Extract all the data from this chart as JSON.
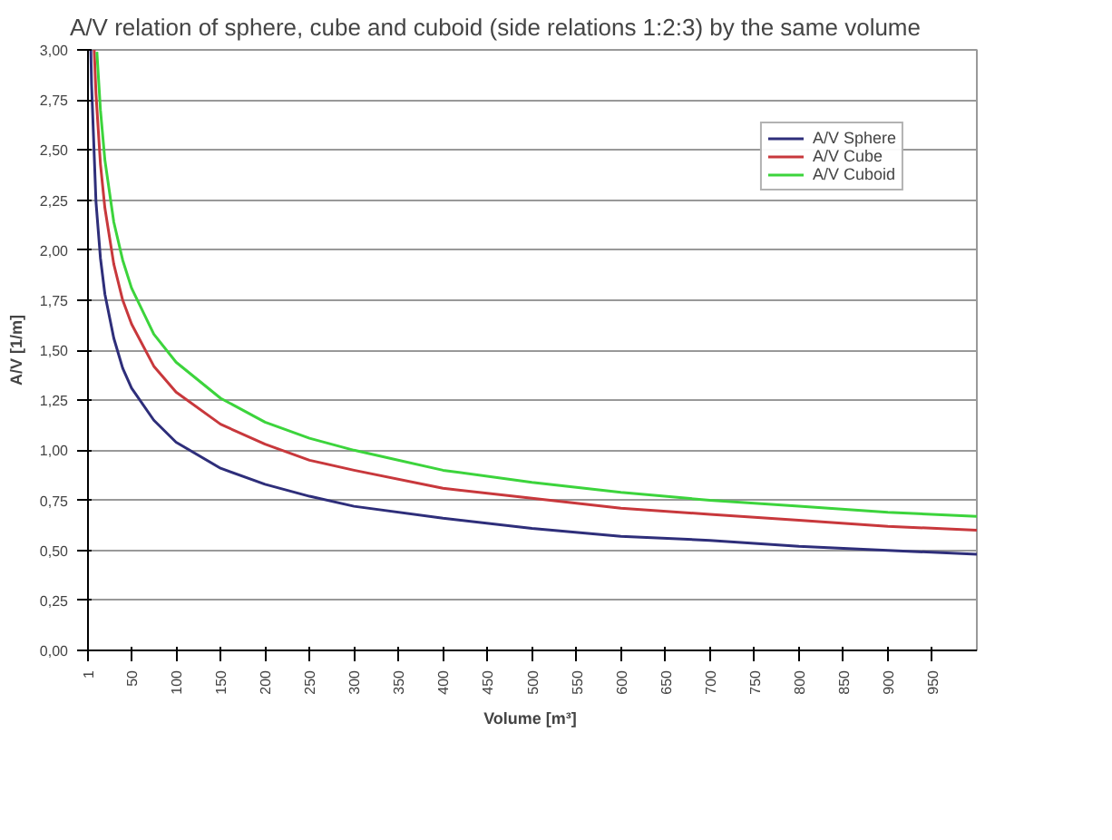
{
  "chart_data": {
    "type": "line",
    "title": "A/V relation of sphere, cube and cuboid (side relations 1:2:3) by the same volume",
    "xlabel": "Volume  [m³]",
    "ylabel": "A/V [1/m]",
    "xlim": [
      1,
      1000
    ],
    "xticks": [
      1,
      50,
      100,
      150,
      200,
      250,
      300,
      350,
      400,
      450,
      500,
      550,
      600,
      650,
      700,
      750,
      800,
      850,
      900,
      950
    ],
    "ylim": [
      0,
      3
    ],
    "yticks": [
      {
        "value": 0,
        "label": "0,00"
      },
      {
        "value": 0.25,
        "label": "0,25"
      },
      {
        "value": 0.5,
        "label": "0,50"
      },
      {
        "value": 0.75,
        "label": "0,75"
      },
      {
        "value": 1,
        "label": "1,00"
      },
      {
        "value": 1.25,
        "label": "1,25"
      },
      {
        "value": 1.5,
        "label": "1,50"
      },
      {
        "value": 1.75,
        "label": "1,75"
      },
      {
        "value": 2,
        "label": "2,00"
      },
      {
        "value": 2.25,
        "label": "2,25"
      },
      {
        "value": 2.5,
        "label": "2,50"
      },
      {
        "value": 2.75,
        "label": "2,75"
      },
      {
        "value": 3,
        "label": "3,00"
      }
    ],
    "grid": "y",
    "legend": "top right",
    "marker": "none",
    "line_style": "solid",
    "series": [
      {
        "name": "A/V Sphere",
        "color": "#2e2e7a",
        "x": [
          4.2,
          5,
          10,
          15,
          20,
          30,
          40,
          50,
          75,
          100,
          150,
          200,
          250,
          300,
          400,
          500,
          600,
          700,
          800,
          900,
          1000
        ],
        "values": [
          3.0,
          2.83,
          2.24,
          1.96,
          1.78,
          1.56,
          1.41,
          1.31,
          1.15,
          1.04,
          0.91,
          0.83,
          0.77,
          0.72,
          0.66,
          0.61,
          0.57,
          0.55,
          0.52,
          0.5,
          0.48
        ]
      },
      {
        "name": "A/V Cube",
        "color": "#c8383c",
        "x": [
          8,
          10,
          15,
          20,
          30,
          40,
          50,
          75,
          100,
          150,
          200,
          250,
          300,
          400,
          500,
          600,
          700,
          800,
          900,
          1000
        ],
        "values": [
          3.0,
          2.78,
          2.43,
          2.21,
          1.93,
          1.75,
          1.63,
          1.42,
          1.29,
          1.13,
          1.03,
          0.95,
          0.9,
          0.81,
          0.76,
          0.71,
          0.68,
          0.65,
          0.62,
          0.6
        ]
      },
      {
        "name": "A/V Cuboid",
        "color": "#3cd43c",
        "x": [
          11,
          15,
          20,
          30,
          40,
          50,
          75,
          100,
          150,
          200,
          250,
          300,
          400,
          500,
          600,
          700,
          800,
          900,
          1000
        ],
        "values": [
          2.99,
          2.7,
          2.45,
          2.14,
          1.95,
          1.81,
          1.58,
          1.44,
          1.26,
          1.14,
          1.06,
          1.0,
          0.9,
          0.84,
          0.79,
          0.75,
          0.72,
          0.69,
          0.67
        ]
      }
    ]
  }
}
